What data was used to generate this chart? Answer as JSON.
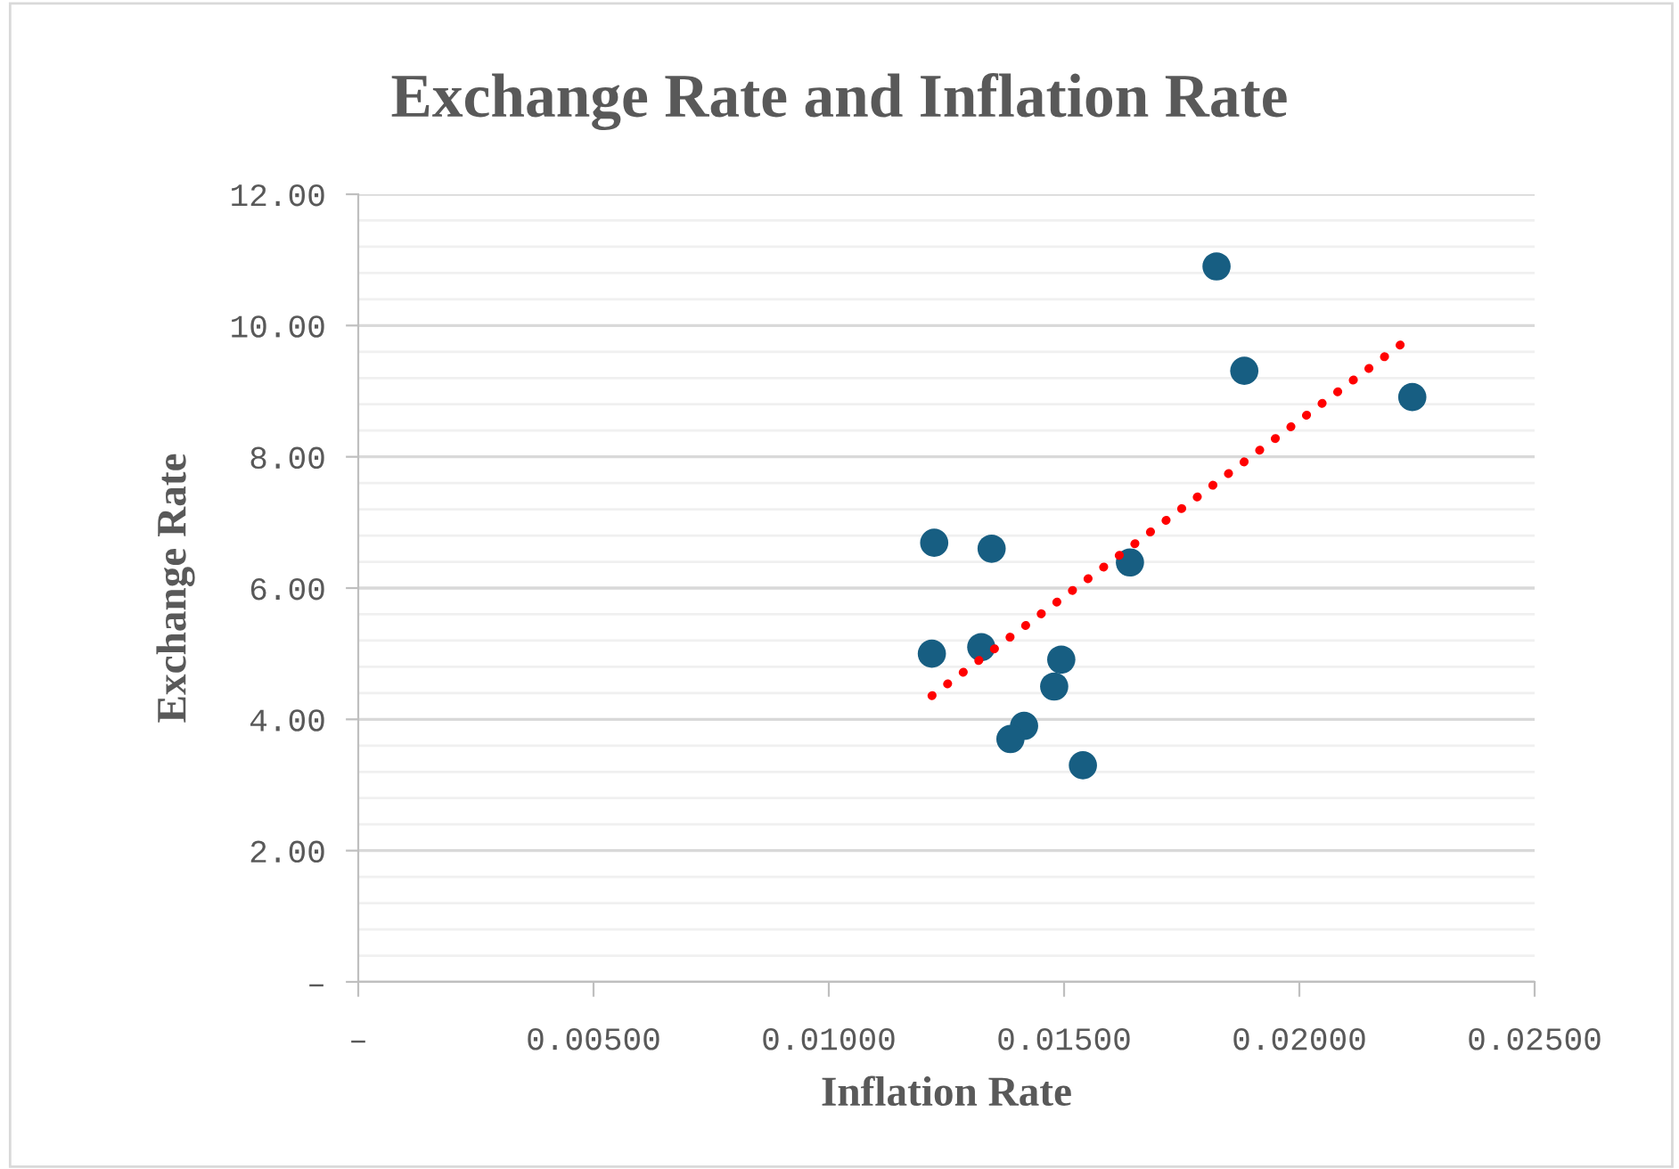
{
  "chart_data": {
    "type": "scatter",
    "title": "Exchange Rate and Inflation Rate",
    "xlabel": "Inflation Rate",
    "ylabel": "Exchange Rate",
    "series": [
      {
        "color": "#175e82",
        "x": [
          0.01224,
          0.01346,
          0.01219,
          0.01324,
          0.0164,
          0.01824,
          0.01883,
          0.0224,
          0.01494,
          0.01479,
          0.01415,
          0.01386,
          0.0154
        ],
        "values": [
          6.69,
          6.6,
          5.0,
          5.1,
          6.39,
          10.9,
          9.31,
          8.91,
          4.91,
          4.5,
          3.9,
          3.7,
          3.3
        ]
      },
      {
        "type": "line",
        "color": "#ff0000",
        "line_style": "dotted",
        "marker": "none",
        "x": [
          0.01219,
          0.02236
        ],
        "values": [
          4.36,
          9.82
        ]
      }
    ],
    "xlim": [
      0,
      0.025
    ],
    "ylim": [
      0,
      12
    ],
    "xticks": [
      {
        "value": 0,
        "label": "–"
      },
      {
        "value": 0.005,
        "label": "0.00500"
      },
      {
        "value": 0.01,
        "label": "0.01000"
      },
      {
        "value": 0.015,
        "label": "0.01500"
      },
      {
        "value": 0.02,
        "label": "0.02000"
      },
      {
        "value": 0.025,
        "label": "0.02500"
      }
    ],
    "yticks": [
      {
        "value": 0,
        "label": "–"
      },
      {
        "value": 0.4,
        "label": null
      },
      {
        "value": 0.8,
        "label": null
      },
      {
        "value": 1.2,
        "label": null
      },
      {
        "value": 1.6,
        "label": null
      },
      {
        "value": 2,
        "label": "2.00"
      },
      {
        "value": 2.4,
        "label": null
      },
      {
        "value": 2.8,
        "label": null
      },
      {
        "value": 3.2,
        "label": null
      },
      {
        "value": 3.6,
        "label": null
      },
      {
        "value": 4,
        "label": "4.00"
      },
      {
        "value": 4.4,
        "label": null
      },
      {
        "value": 4.8,
        "label": null
      },
      {
        "value": 5.2,
        "label": null
      },
      {
        "value": 5.6,
        "label": null
      },
      {
        "value": 6,
        "label": "6.00"
      },
      {
        "value": 6.4,
        "label": null
      },
      {
        "value": 6.8,
        "label": null
      },
      {
        "value": 7.2,
        "label": null
      },
      {
        "value": 7.6,
        "label": null
      },
      {
        "value": 8,
        "label": "8.00"
      },
      {
        "value": 8.4,
        "label": null
      },
      {
        "value": 8.8,
        "label": null
      },
      {
        "value": 9.2,
        "label": null
      },
      {
        "value": 9.6,
        "label": null
      },
      {
        "value": 10,
        "label": "10.00"
      },
      {
        "value": 10.4,
        "label": null
      },
      {
        "value": 10.8,
        "label": null
      },
      {
        "value": 11.2,
        "label": null
      },
      {
        "value": 11.6,
        "label": null
      },
      {
        "value": 12,
        "label": "12.00"
      }
    ],
    "grid": "y",
    "marker": "circle",
    "legend": false
  }
}
